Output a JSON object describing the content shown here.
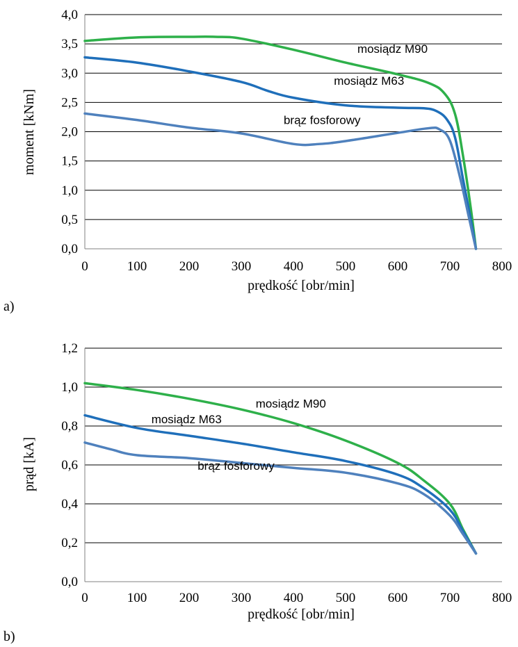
{
  "chart_data": [
    {
      "type": "line",
      "panel_label": "a)",
      "xlabel": "prędkość [obr/min]",
      "ylabel": "moment [kNm]",
      "xlim": [
        0,
        800
      ],
      "ylim": [
        0,
        4
      ],
      "xticks": [
        "0",
        "100",
        "200",
        "300",
        "400",
        "500",
        "600",
        "700",
        "800"
      ],
      "yticks": [
        "0,0",
        "0,5",
        "1,0",
        "1,5",
        "2,0",
        "2,5",
        "3,0",
        "3,5",
        "4,0"
      ],
      "grid": "horizontal",
      "series": [
        {
          "name": "mosiądz M90",
          "color": "#2eb04a",
          "x": [
            0,
            100,
            200,
            250,
            300,
            400,
            500,
            600,
            660,
            690,
            710,
            725,
            740,
            750
          ],
          "y": [
            3.55,
            3.61,
            3.62,
            3.62,
            3.59,
            3.4,
            3.18,
            2.98,
            2.83,
            2.65,
            2.3,
            1.6,
            0.7,
            0.0
          ]
        },
        {
          "name": "mosiądz M63",
          "color": "#1f6fba",
          "x": [
            0,
            100,
            200,
            300,
            350,
            400,
            500,
            600,
            650,
            675,
            695,
            710,
            725,
            740,
            750
          ],
          "y": [
            3.27,
            3.18,
            3.03,
            2.85,
            2.7,
            2.58,
            2.45,
            2.41,
            2.4,
            2.35,
            2.2,
            1.9,
            1.2,
            0.5,
            0.0
          ]
        },
        {
          "name": "brąz fosforowy",
          "color": "#4f81bd",
          "x": [
            0,
            100,
            200,
            300,
            400,
            450,
            500,
            600,
            660,
            680,
            700,
            720,
            735,
            750
          ],
          "y": [
            2.31,
            2.2,
            2.07,
            1.97,
            1.79,
            1.79,
            1.84,
            1.98,
            2.06,
            2.04,
            1.85,
            1.2,
            0.6,
            0.0
          ]
        }
      ],
      "annotations": [
        {
          "text": "mosiądz M90",
          "x": 590,
          "y": 3.35
        },
        {
          "text": "mosiądz M63",
          "x": 545,
          "y": 2.8
        },
        {
          "text": "brąz fosforowy",
          "x": 455,
          "y": 2.13
        }
      ]
    },
    {
      "type": "line",
      "panel_label": "b)",
      "xlabel": "prędkość [obr/min]",
      "ylabel": "prąd [kA]",
      "xlim": [
        0,
        800
      ],
      "ylim": [
        0,
        1.2
      ],
      "xticks": [
        "0",
        "100",
        "200",
        "300",
        "400",
        "500",
        "600",
        "700",
        "800"
      ],
      "yticks": [
        "0,0",
        "0,2",
        "0,4",
        "0,6",
        "0,8",
        "1,0",
        "1,2"
      ],
      "grid": "horizontal",
      "series": [
        {
          "name": "mosiądz M90",
          "color": "#2eb04a",
          "x": [
            0,
            100,
            200,
            300,
            400,
            500,
            600,
            650,
            700,
            725,
            750
          ],
          "y": [
            1.02,
            0.985,
            0.94,
            0.885,
            0.815,
            0.725,
            0.61,
            0.52,
            0.4,
            0.27,
            0.145
          ]
        },
        {
          "name": "mosiądz M63",
          "color": "#1f6fba",
          "x": [
            0,
            100,
            200,
            300,
            400,
            500,
            600,
            650,
            700,
            725,
            750
          ],
          "y": [
            0.855,
            0.79,
            0.75,
            0.71,
            0.665,
            0.62,
            0.55,
            0.48,
            0.37,
            0.26,
            0.145
          ]
        },
        {
          "name": "brąz fosforowy",
          "color": "#4f81bd",
          "x": [
            0,
            50,
            100,
            200,
            300,
            400,
            500,
            600,
            650,
            700,
            725,
            750
          ],
          "y": [
            0.715,
            0.68,
            0.65,
            0.635,
            0.61,
            0.585,
            0.56,
            0.505,
            0.45,
            0.34,
            0.245,
            0.145
          ]
        }
      ],
      "annotations": [
        {
          "text": "mosiądz M90",
          "x": 395,
          "y": 0.895
        },
        {
          "text": "mosiądz M63",
          "x": 195,
          "y": 0.815
        },
        {
          "text": "brąz fosforowy",
          "x": 290,
          "y": 0.575
        }
      ]
    }
  ]
}
